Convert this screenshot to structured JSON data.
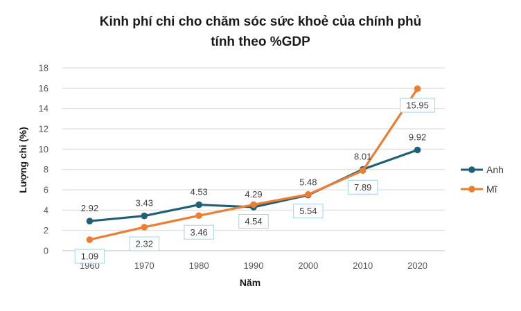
{
  "chart_data": {
    "type": "line",
    "title_lines": [
      "Kinh phí chi cho chăm sóc sức khoẻ của chính phủ",
      "tính theo %GDP"
    ],
    "xlabel": "Năm",
    "ylabel": "Lượng chi (%)",
    "categories": [
      "1960",
      "1970",
      "1980",
      "1990",
      "2000",
      "2010",
      "2020"
    ],
    "y_ticks": [
      "0",
      "2",
      "4",
      "6",
      "8",
      "10",
      "12",
      "14",
      "16",
      "18"
    ],
    "ylim": [
      0,
      18
    ],
    "grid": true,
    "legend_position": "right",
    "series": [
      {
        "name": "Anh",
        "color": "#1f5f7a",
        "values": [
          2.92,
          3.43,
          4.53,
          4.29,
          5.48,
          8.01,
          9.92
        ],
        "labels": [
          "2.92",
          "3.43",
          "4.53",
          "4.29",
          "5.48",
          "8.01",
          "9.92"
        ],
        "label_style": "plain-above"
      },
      {
        "name": "Mĩ",
        "color": "#ed7d31",
        "values": [
          1.09,
          2.32,
          3.46,
          4.54,
          5.54,
          7.89,
          15.95
        ],
        "labels": [
          "1.09",
          "2.32",
          "3.46",
          "4.54",
          "5.54",
          "7.89",
          "15.95"
        ],
        "label_style": "boxed-below",
        "label_border": "#9dd3ea"
      }
    ]
  }
}
